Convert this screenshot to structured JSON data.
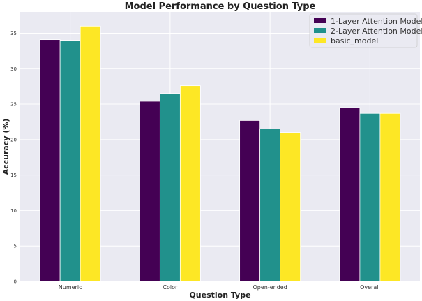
{
  "chart_data": {
    "type": "bar",
    "title": "Model Performance by Question Type",
    "xlabel": "Question Type",
    "ylabel": "Accuracy (%)",
    "categories": [
      "Numeric",
      "Color",
      "Open-ended",
      "Overall"
    ],
    "ylim": [
      0,
      38
    ],
    "yticks": [
      0,
      5,
      10,
      15,
      20,
      25,
      30,
      35
    ],
    "grid": true,
    "legend_position": "top-right",
    "series": [
      {
        "name": "1-Layer Attention Model",
        "color": "#440154",
        "values": [
          34.1,
          25.4,
          22.7,
          24.5
        ]
      },
      {
        "name": "2-Layer Attention Model",
        "color": "#21918c",
        "values": [
          34.0,
          26.5,
          21.5,
          23.7
        ]
      },
      {
        "name": "basic_model",
        "color": "#fde725",
        "values": [
          36.0,
          27.6,
          21.0,
          23.7
        ]
      }
    ]
  }
}
